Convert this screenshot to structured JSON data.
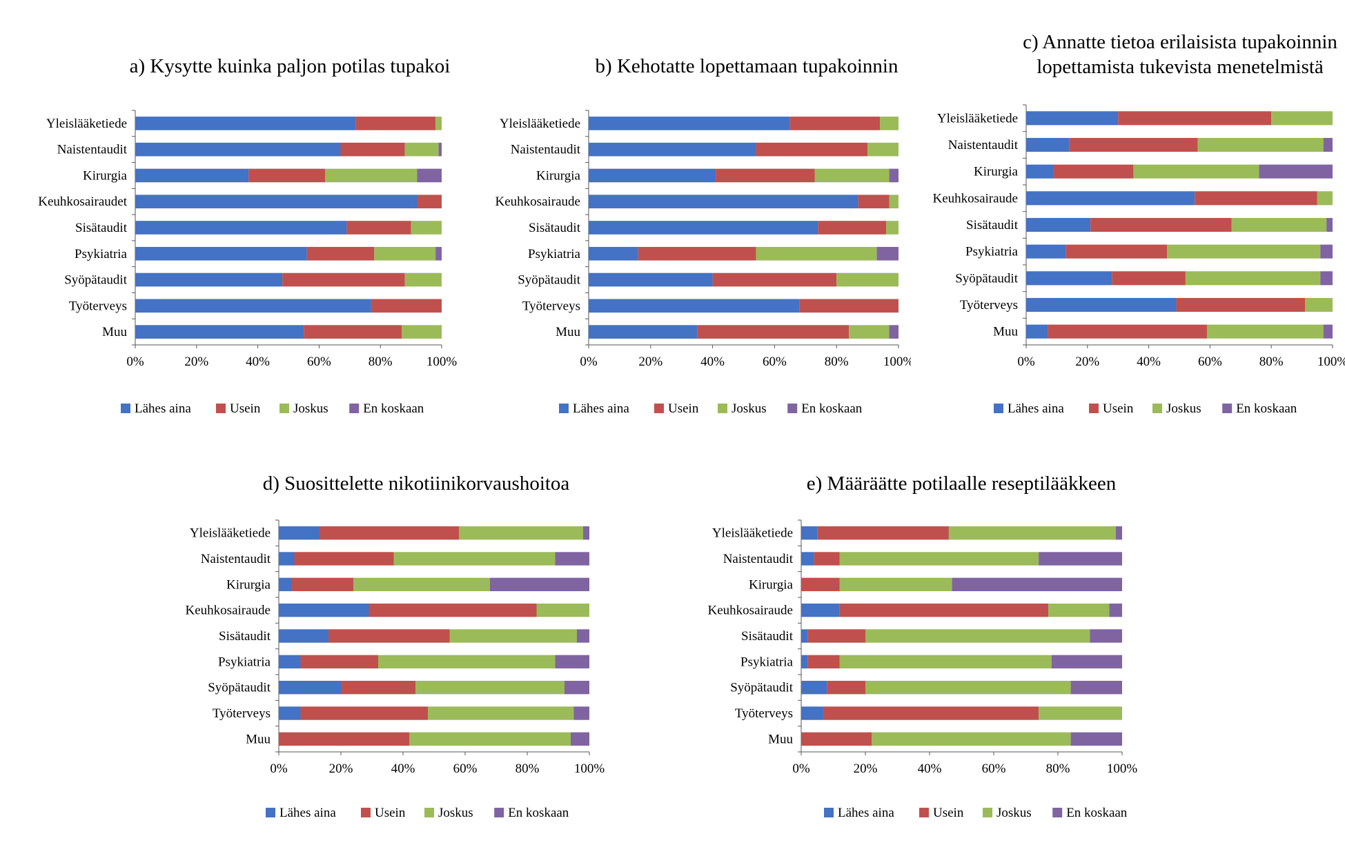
{
  "colors": {
    "lahes_aina": "#4472C4",
    "usein": "#C0504D",
    "joskus": "#9BBB59",
    "en_koskaan": "#8064A2"
  },
  "chart_data": [
    {
      "type": "bar",
      "stacked": true,
      "orientation": "horizontal",
      "title": [
        "a) Kysytte kuinka paljon potilas tupakoi"
      ],
      "categories": [
        "Yleislääketiede",
        "Naistentaudit",
        "Kirurgia",
        "Keuhkosairaudet",
        "Sisätaudit",
        "Psykiatria",
        "Syöpätaudit",
        "Työterveys",
        "Muu"
      ],
      "series": [
        {
          "name": "Lähes aina",
          "values": [
            72,
            67,
            37,
            92,
            69,
            56,
            48,
            77,
            55
          ]
        },
        {
          "name": "Usein",
          "values": [
            26,
            21,
            25,
            8,
            21,
            22,
            40,
            23,
            32
          ]
        },
        {
          "name": "Joskus",
          "values": [
            2,
            11,
            30,
            0,
            10,
            20,
            12,
            0,
            13
          ]
        },
        {
          "name": "En koskaan",
          "values": [
            0,
            1,
            8,
            0,
            0,
            2,
            0,
            0,
            0
          ]
        }
      ],
      "xticks": [
        "0%",
        "20%",
        "40%",
        "60%",
        "80%",
        "100%"
      ],
      "xlim": [
        0,
        100
      ],
      "legend": "bottom"
    },
    {
      "type": "bar",
      "stacked": true,
      "orientation": "horizontal",
      "title": [
        "b) Kehotatte lopettamaan tupakoinnin"
      ],
      "categories": [
        "Yleislääketiede",
        "Naistentaudit",
        "Kirurgia",
        "Keuhkosairaude",
        "Sisätaudit",
        "Psykiatria",
        "Syöpätaudit",
        "Työterveys",
        "Muu"
      ],
      "series": [
        {
          "name": "Lähes aina",
          "values": [
            65,
            54,
            41,
            87,
            74,
            16,
            40,
            68,
            35
          ]
        },
        {
          "name": "Usein",
          "values": [
            29,
            36,
            32,
            10,
            22,
            38,
            40,
            32,
            49
          ]
        },
        {
          "name": "Joskus",
          "values": [
            6,
            10,
            24,
            3,
            4,
            39,
            20,
            0,
            13
          ]
        },
        {
          "name": "En koskaan",
          "values": [
            0,
            0,
            3,
            0,
            0,
            7,
            0,
            0,
            3
          ]
        }
      ],
      "xticks": [
        "0%",
        "20%",
        "40%",
        "60%",
        "80%",
        "100%"
      ],
      "xlim": [
        0,
        100
      ],
      "legend": "bottom"
    },
    {
      "type": "bar",
      "stacked": true,
      "orientation": "horizontal",
      "title": [
        "c) Annatte tietoa erilaisista tupakoinnin",
        "lopettamista tukevista menetelmistä"
      ],
      "categories": [
        "Yleislääketiede",
        "Naistentaudit",
        "Kirurgia",
        "Keuhkosairaude",
        "Sisätaudit",
        "Psykiatria",
        "Syöpätaudit",
        "Työterveys",
        "Muu"
      ],
      "series": [
        {
          "name": "Lähes aina",
          "values": [
            30,
            14,
            9,
            55,
            21,
            13,
            28,
            49,
            7
          ]
        },
        {
          "name": "Usein",
          "values": [
            50,
            42,
            26,
            40,
            46,
            33,
            24,
            42,
            52
          ]
        },
        {
          "name": "Joskus",
          "values": [
            20,
            41,
            41,
            5,
            31,
            50,
            44,
            9,
            38
          ]
        },
        {
          "name": "En koskaan",
          "values": [
            0,
            3,
            24,
            0,
            2,
            4,
            4,
            0,
            3
          ]
        }
      ],
      "xticks": [
        "0%",
        "20%",
        "40%",
        "60%",
        "80%",
        "100%"
      ],
      "xlim": [
        0,
        100
      ],
      "legend": "bottom"
    },
    {
      "type": "bar",
      "stacked": true,
      "orientation": "horizontal",
      "title": [
        "d) Suosittelette nikotiinikorvaushoitoa"
      ],
      "categories": [
        "Yleislääketiede",
        "Naistentaudit",
        "Kirurgia",
        "Keuhkosairaude",
        "Sisätaudit",
        "Psykiatria",
        "Syöpätaudit",
        "Työterveys",
        "Muu"
      ],
      "series": [
        {
          "name": "Lähes aina",
          "values": [
            13,
            5,
            4,
            29,
            16,
            7,
            20,
            7,
            0
          ]
        },
        {
          "name": "Usein",
          "values": [
            45,
            32,
            20,
            54,
            39,
            25,
            24,
            41,
            42
          ]
        },
        {
          "name": "Joskus",
          "values": [
            40,
            52,
            44,
            17,
            41,
            57,
            48,
            47,
            52
          ]
        },
        {
          "name": "En koskaan",
          "values": [
            2,
            11,
            32,
            0,
            4,
            11,
            8,
            5,
            6
          ]
        }
      ],
      "xticks": [
        "0%",
        "20%",
        "40%",
        "60%",
        "80%",
        "100%"
      ],
      "xlim": [
        0,
        100
      ],
      "legend": "bottom"
    },
    {
      "type": "bar",
      "stacked": true,
      "orientation": "horizontal",
      "title": [
        "e) Määräätte potilaalle reseptilääkkeen"
      ],
      "categories": [
        "Yleislääketiede",
        "Naistentaudit",
        "Kirurgia",
        "Keuhkosairaude",
        "Sisätaudit",
        "Psykiatria",
        "Syöpätaudit",
        "Työterveys",
        "Muu"
      ],
      "series": [
        {
          "name": "Lähes aina",
          "values": [
            5,
            4,
            0,
            12,
            2,
            2,
            8,
            7,
            0
          ]
        },
        {
          "name": "Usein",
          "values": [
            41,
            8,
            12,
            65,
            18,
            10,
            12,
            67,
            22
          ]
        },
        {
          "name": "Joskus",
          "values": [
            52,
            62,
            35,
            19,
            70,
            66,
            64,
            26,
            62
          ]
        },
        {
          "name": "En koskaan",
          "values": [
            2,
            26,
            53,
            4,
            10,
            22,
            16,
            0,
            16
          ]
        }
      ],
      "xticks": [
        "0%",
        "20%",
        "40%",
        "60%",
        "80%",
        "100%"
      ],
      "xlim": [
        0,
        100
      ],
      "legend": "bottom"
    }
  ]
}
